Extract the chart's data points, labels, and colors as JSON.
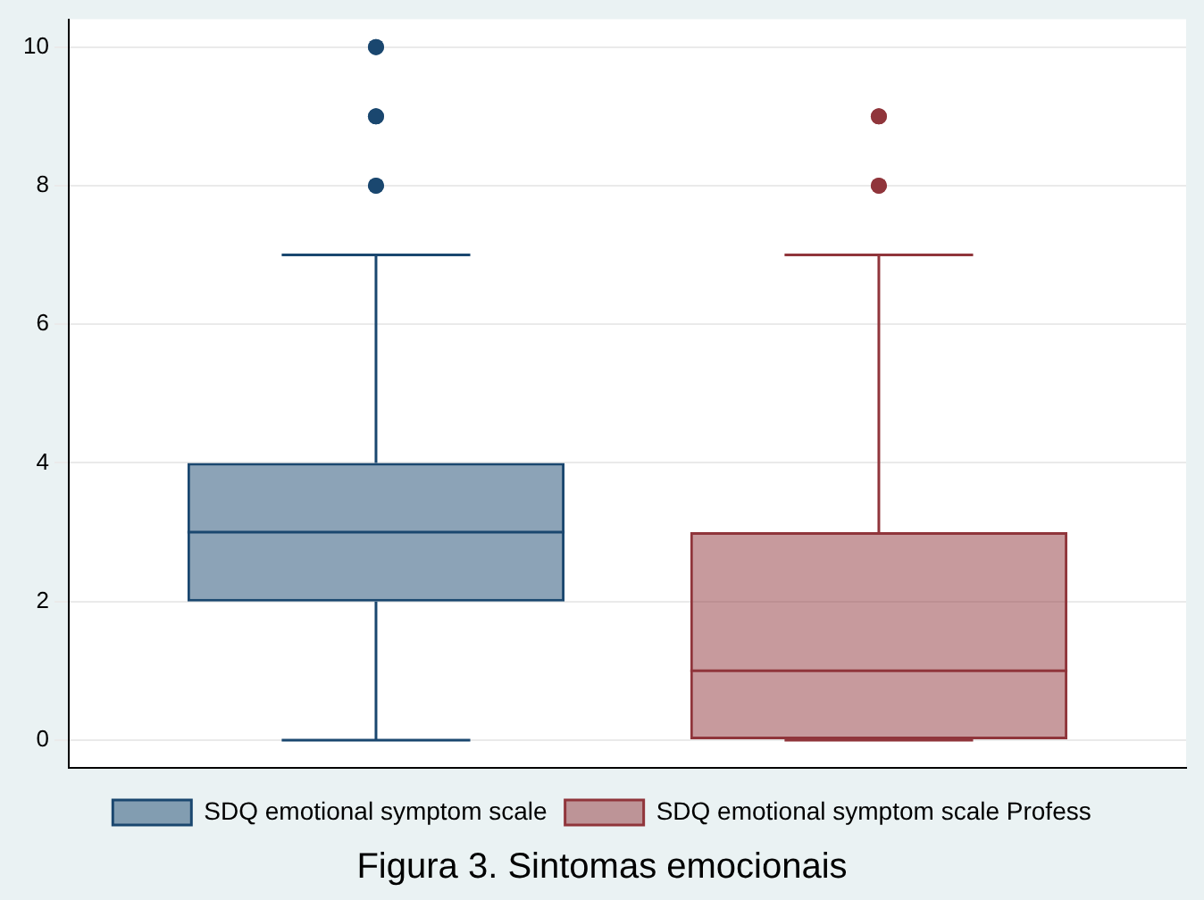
{
  "chart_data": {
    "type": "box",
    "title": "Figura 3. Sintomas emocionais",
    "categories": [
      null
    ],
    "series": [
      {
        "name": "SDQ emotional symptom scale",
        "color": "#1a476f",
        "boxes": [
          {
            "low": 0,
            "q1": 2,
            "median": 3,
            "q3": 4,
            "high": 7,
            "outliers": [
              8,
              9,
              10
            ]
          }
        ]
      },
      {
        "name": "SDQ emotional symptom scale Profess",
        "color": "#90353b",
        "boxes": [
          {
            "low": 0,
            "q1": 0,
            "median": 1,
            "q3": 3,
            "high": 7,
            "outliers": [
              8,
              9
            ]
          }
        ]
      }
    ],
    "ylim": [
      -0.4,
      10.4
    ],
    "yticks": [
      0,
      2,
      4,
      6,
      8,
      10
    ],
    "grid": "y",
    "legend": "bottom",
    "tick_labels": "y",
    "marker": "circle"
  }
}
